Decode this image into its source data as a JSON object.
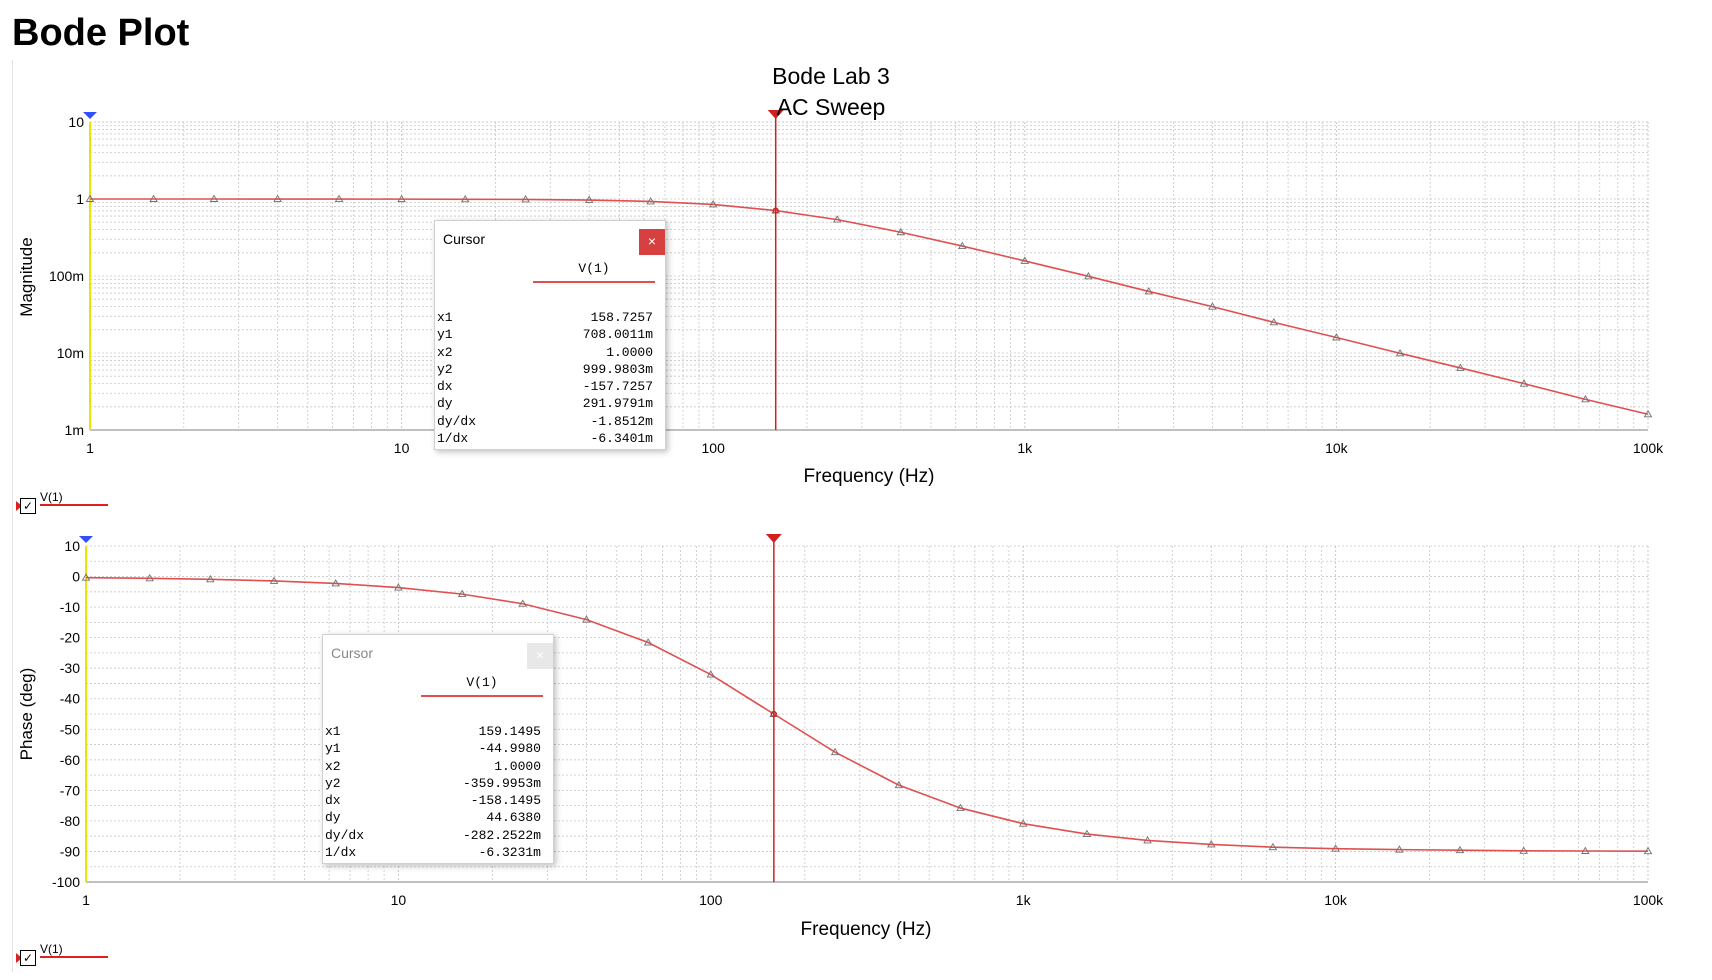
{
  "page": {
    "title": "Bode Plot"
  },
  "colors": {
    "trace": "#e05050",
    "grid": "#c8c8c8",
    "cursor": "#d02020",
    "axis_y": "#e6e600",
    "cursor_marker_blue": "#3050ff"
  },
  "chart_data": [
    {
      "type": "line",
      "title": "Bode Lab 3",
      "subtitle": "AC Sweep",
      "xlabel": "Frequency (Hz)",
      "ylabel": "Magnitude",
      "xscale": "log",
      "yscale": "log",
      "xlim": [
        1,
        100000
      ],
      "ylim": [
        0.001,
        10
      ],
      "x_ticks": [
        "1",
        "10",
        "100",
        "1k",
        "10k",
        "100k"
      ],
      "y_ticks": [
        "10",
        "1",
        "100m",
        "10m",
        "1m"
      ],
      "grid": true,
      "series": [
        {
          "name": "V(1)",
          "x": [
            1,
            1.6,
            2.5,
            4,
            6.3,
            10,
            16,
            25,
            40,
            63,
            100,
            158.7,
            250,
            400,
            630,
            1000,
            1600,
            2500,
            4000,
            6300,
            10000,
            16000,
            25000,
            40000,
            63000,
            100000
          ],
          "y": [
            1.0,
            1.0,
            1.0,
            0.999,
            0.998,
            0.996,
            0.99,
            0.988,
            0.97,
            0.93,
            0.85,
            0.708,
            0.54,
            0.37,
            0.245,
            0.157,
            0.099,
            0.063,
            0.04,
            0.025,
            0.0159,
            0.0099,
            0.0064,
            0.004,
            0.0025,
            0.0016
          ]
        }
      ],
      "cursor": {
        "x": 158.7257,
        "y": 0.708
      },
      "legend": "bottom-left"
    },
    {
      "type": "line",
      "xlabel": "Frequency (Hz)",
      "ylabel": "Phase (deg)",
      "xscale": "log",
      "xlim": [
        1,
        100000
      ],
      "ylim": [
        -100,
        10
      ],
      "x_ticks": [
        "1",
        "10",
        "100",
        "1k",
        "10k",
        "100k"
      ],
      "y_ticks": [
        "10",
        "0",
        "-10",
        "-20",
        "-30",
        "-40",
        "-50",
        "-60",
        "-70",
        "-80",
        "-90",
        "-100"
      ],
      "grid": true,
      "series": [
        {
          "name": "V(1)",
          "x": [
            1,
            1.6,
            2.5,
            4,
            6.3,
            10,
            16,
            25,
            40,
            63,
            100,
            159.1,
            250,
            400,
            630,
            1000,
            1600,
            2500,
            4000,
            6300,
            10000,
            16000,
            25000,
            40000,
            63000,
            100000
          ],
          "y": [
            -0.36,
            -0.58,
            -0.9,
            -1.44,
            -2.27,
            -3.6,
            -5.75,
            -8.9,
            -14.1,
            -21.6,
            -32.1,
            -45.0,
            -57.5,
            -68.3,
            -75.8,
            -80.9,
            -84.3,
            -86.4,
            -87.7,
            -88.6,
            -89.1,
            -89.4,
            -89.6,
            -89.8,
            -89.85,
            -89.9
          ]
        }
      ],
      "cursor": {
        "x": 159.1495,
        "y": -44.998
      },
      "legend": "bottom-left"
    }
  ],
  "cursor_panels": [
    {
      "title": "Cursor",
      "close": "×",
      "column": "V(1)",
      "rows": [
        {
          "label": "x1",
          "value": "158.7257"
        },
        {
          "label": "y1",
          "value": "708.0011m"
        },
        {
          "label": "x2",
          "value": "1.0000"
        },
        {
          "label": "y2",
          "value": "999.9803m"
        },
        {
          "label": "dx",
          "value": "-157.7257"
        },
        {
          "label": "dy",
          "value": "291.9791m"
        },
        {
          "label": "dy/dx",
          "value": "-1.8512m"
        },
        {
          "label": "1/dx",
          "value": "-6.3401m"
        }
      ]
    },
    {
      "title": "Cursor",
      "close": "×",
      "column": "V(1)",
      "rows": [
        {
          "label": "x1",
          "value": "159.1495"
        },
        {
          "label": "y1",
          "value": "-44.9980"
        },
        {
          "label": "x2",
          "value": "1.0000"
        },
        {
          "label": "y2",
          "value": "-359.9953m"
        },
        {
          "label": "dx",
          "value": "-158.1495"
        },
        {
          "label": "dy",
          "value": "44.6380"
        },
        {
          "label": "dy/dx",
          "value": "-282.2522m"
        },
        {
          "label": "1/dx",
          "value": "-6.3231m"
        }
      ]
    }
  ],
  "legends": [
    {
      "label": "V(1)",
      "checkbox": "✓"
    },
    {
      "label": "V(1)",
      "checkbox": "✓"
    }
  ]
}
